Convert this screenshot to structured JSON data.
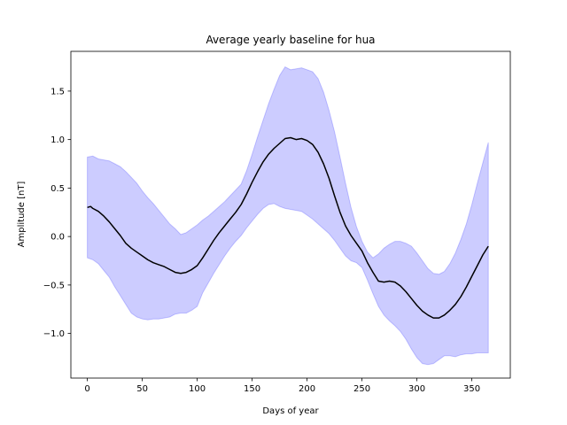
{
  "chart_data": {
    "type": "line",
    "title": "Average yearly baseline for hua",
    "xlabel": "Days of year",
    "ylabel": "Amplitude [nT]",
    "xlim": [
      -15,
      385
    ],
    "ylim": [
      -1.46,
      1.91
    ],
    "xticks": [
      0,
      50,
      100,
      150,
      200,
      250,
      300,
      350
    ],
    "yticks": [
      -1.0,
      -0.5,
      0.0,
      0.5,
      1.0,
      1.5
    ],
    "ytick_labels": [
      "−1.0",
      "−0.5",
      "0.0",
      "0.5",
      "1.0",
      "1.5"
    ],
    "grid": false,
    "series": [
      {
        "kind": "band",
        "color": "#0000ff",
        "opacity": 0.2,
        "upper": [
          [
            0,
            0.82
          ],
          [
            5,
            0.83
          ],
          [
            10,
            0.8
          ],
          [
            15,
            0.79
          ],
          [
            20,
            0.78
          ],
          [
            25,
            0.75
          ],
          [
            30,
            0.72
          ],
          [
            35,
            0.67
          ],
          [
            40,
            0.61
          ],
          [
            45,
            0.55
          ],
          [
            50,
            0.47
          ],
          [
            55,
            0.4
          ],
          [
            60,
            0.34
          ],
          [
            65,
            0.27
          ],
          [
            70,
            0.2
          ],
          [
            75,
            0.13
          ],
          [
            80,
            0.08
          ],
          [
            85,
            0.02
          ],
          [
            90,
            0.04
          ],
          [
            95,
            0.08
          ],
          [
            100,
            0.12
          ],
          [
            105,
            0.17
          ],
          [
            110,
            0.21
          ],
          [
            115,
            0.26
          ],
          [
            120,
            0.31
          ],
          [
            125,
            0.36
          ],
          [
            130,
            0.42
          ],
          [
            135,
            0.48
          ],
          [
            140,
            0.54
          ],
          [
            145,
            0.68
          ],
          [
            150,
            0.85
          ],
          [
            155,
            1.03
          ],
          [
            160,
            1.2
          ],
          [
            165,
            1.37
          ],
          [
            170,
            1.52
          ],
          [
            175,
            1.66
          ],
          [
            180,
            1.75
          ],
          [
            185,
            1.72
          ],
          [
            190,
            1.73
          ],
          [
            195,
            1.74
          ],
          [
            200,
            1.72
          ],
          [
            205,
            1.7
          ],
          [
            210,
            1.63
          ],
          [
            215,
            1.49
          ],
          [
            220,
            1.3
          ],
          [
            225,
            1.08
          ],
          [
            230,
            0.82
          ],
          [
            235,
            0.55
          ],
          [
            240,
            0.3
          ],
          [
            245,
            0.1
          ],
          [
            250,
            -0.05
          ],
          [
            255,
            -0.16
          ],
          [
            260,
            -0.22
          ],
          [
            265,
            -0.18
          ],
          [
            270,
            -0.12
          ],
          [
            275,
            -0.08
          ],
          [
            280,
            -0.05
          ],
          [
            285,
            -0.05
          ],
          [
            290,
            -0.07
          ],
          [
            295,
            -0.1
          ],
          [
            300,
            -0.17
          ],
          [
            305,
            -0.25
          ],
          [
            310,
            -0.33
          ],
          [
            315,
            -0.38
          ],
          [
            320,
            -0.39
          ],
          [
            325,
            -0.36
          ],
          [
            330,
            -0.28
          ],
          [
            335,
            -0.17
          ],
          [
            340,
            -0.03
          ],
          [
            345,
            0.13
          ],
          [
            350,
            0.33
          ],
          [
            355,
            0.55
          ],
          [
            360,
            0.76
          ],
          [
            365,
            0.97
          ]
        ],
        "lower": [
          [
            0,
            -0.22
          ],
          [
            5,
            -0.24
          ],
          [
            10,
            -0.28
          ],
          [
            15,
            -0.35
          ],
          [
            20,
            -0.42
          ],
          [
            25,
            -0.52
          ],
          [
            30,
            -0.61
          ],
          [
            35,
            -0.7
          ],
          [
            40,
            -0.79
          ],
          [
            45,
            -0.83
          ],
          [
            50,
            -0.85
          ],
          [
            55,
            -0.86
          ],
          [
            60,
            -0.85
          ],
          [
            65,
            -0.85
          ],
          [
            70,
            -0.84
          ],
          [
            75,
            -0.83
          ],
          [
            80,
            -0.8
          ],
          [
            85,
            -0.79
          ],
          [
            90,
            -0.79
          ],
          [
            95,
            -0.76
          ],
          [
            100,
            -0.72
          ],
          [
            105,
            -0.58
          ],
          [
            110,
            -0.48
          ],
          [
            115,
            -0.38
          ],
          [
            120,
            -0.29
          ],
          [
            125,
            -0.2
          ],
          [
            130,
            -0.12
          ],
          [
            135,
            -0.05
          ],
          [
            140,
            0.01
          ],
          [
            145,
            0.09
          ],
          [
            150,
            0.16
          ],
          [
            155,
            0.23
          ],
          [
            160,
            0.29
          ],
          [
            165,
            0.33
          ],
          [
            170,
            0.34
          ],
          [
            175,
            0.31
          ],
          [
            180,
            0.29
          ],
          [
            185,
            0.28
          ],
          [
            190,
            0.27
          ],
          [
            195,
            0.26
          ],
          [
            200,
            0.22
          ],
          [
            205,
            0.18
          ],
          [
            210,
            0.13
          ],
          [
            215,
            0.08
          ],
          [
            220,
            0.03
          ],
          [
            225,
            -0.04
          ],
          [
            230,
            -0.12
          ],
          [
            235,
            -0.2
          ],
          [
            240,
            -0.25
          ],
          [
            245,
            -0.27
          ],
          [
            250,
            -0.32
          ],
          [
            255,
            -0.45
          ],
          [
            260,
            -0.59
          ],
          [
            265,
            -0.72
          ],
          [
            270,
            -0.81
          ],
          [
            275,
            -0.87
          ],
          [
            280,
            -0.92
          ],
          [
            285,
            -0.98
          ],
          [
            290,
            -1.06
          ],
          [
            295,
            -1.16
          ],
          [
            300,
            -1.25
          ],
          [
            305,
            -1.31
          ],
          [
            310,
            -1.32
          ],
          [
            315,
            -1.31
          ],
          [
            320,
            -1.27
          ],
          [
            325,
            -1.23
          ],
          [
            330,
            -1.23
          ],
          [
            335,
            -1.24
          ],
          [
            340,
            -1.22
          ],
          [
            345,
            -1.21
          ],
          [
            350,
            -1.21
          ],
          [
            355,
            -1.2
          ],
          [
            360,
            -1.2
          ],
          [
            365,
            -1.2
          ]
        ]
      },
      {
        "kind": "line",
        "color": "#000000",
        "points": [
          [
            0,
            0.3
          ],
          [
            3,
            0.31
          ],
          [
            5,
            0.29
          ],
          [
            10,
            0.26
          ],
          [
            15,
            0.21
          ],
          [
            20,
            0.15
          ],
          [
            25,
            0.08
          ],
          [
            30,
            0.01
          ],
          [
            35,
            -0.07
          ],
          [
            40,
            -0.12
          ],
          [
            45,
            -0.16
          ],
          [
            50,
            -0.2
          ],
          [
            55,
            -0.24
          ],
          [
            60,
            -0.27
          ],
          [
            65,
            -0.29
          ],
          [
            70,
            -0.31
          ],
          [
            75,
            -0.34
          ],
          [
            80,
            -0.37
          ],
          [
            85,
            -0.38
          ],
          [
            90,
            -0.37
          ],
          [
            95,
            -0.34
          ],
          [
            100,
            -0.3
          ],
          [
            105,
            -0.22
          ],
          [
            110,
            -0.13
          ],
          [
            115,
            -0.04
          ],
          [
            120,
            0.04
          ],
          [
            125,
            0.11
          ],
          [
            130,
            0.18
          ],
          [
            135,
            0.25
          ],
          [
            140,
            0.33
          ],
          [
            145,
            0.44
          ],
          [
            150,
            0.56
          ],
          [
            155,
            0.67
          ],
          [
            160,
            0.77
          ],
          [
            165,
            0.85
          ],
          [
            170,
            0.91
          ],
          [
            175,
            0.96
          ],
          [
            180,
            1.01
          ],
          [
            185,
            1.02
          ],
          [
            190,
            1.0
          ],
          [
            195,
            1.01
          ],
          [
            200,
            0.99
          ],
          [
            205,
            0.95
          ],
          [
            210,
            0.87
          ],
          [
            215,
            0.75
          ],
          [
            220,
            0.6
          ],
          [
            225,
            0.42
          ],
          [
            230,
            0.25
          ],
          [
            235,
            0.11
          ],
          [
            240,
            0.01
          ],
          [
            245,
            -0.07
          ],
          [
            250,
            -0.15
          ],
          [
            255,
            -0.27
          ],
          [
            260,
            -0.37
          ],
          [
            265,
            -0.46
          ],
          [
            270,
            -0.47
          ],
          [
            275,
            -0.46
          ],
          [
            280,
            -0.47
          ],
          [
            285,
            -0.51
          ],
          [
            290,
            -0.57
          ],
          [
            295,
            -0.64
          ],
          [
            300,
            -0.71
          ],
          [
            305,
            -0.77
          ],
          [
            310,
            -0.81
          ],
          [
            315,
            -0.84
          ],
          [
            320,
            -0.84
          ],
          [
            325,
            -0.81
          ],
          [
            330,
            -0.76
          ],
          [
            335,
            -0.7
          ],
          [
            340,
            -0.62
          ],
          [
            345,
            -0.52
          ],
          [
            350,
            -0.41
          ],
          [
            355,
            -0.3
          ],
          [
            360,
            -0.19
          ],
          [
            365,
            -0.1
          ]
        ]
      }
    ]
  }
}
